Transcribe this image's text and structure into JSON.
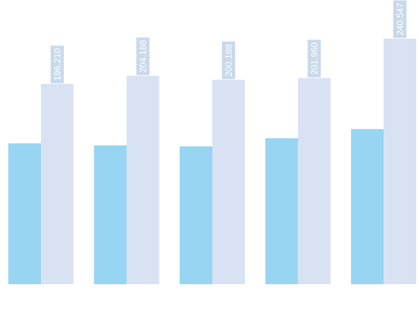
{
  "chart_data": {
    "type": "bar",
    "categories": [
      "",
      "",
      "",
      "",
      ""
    ],
    "series": [
      {
        "color": "#97d5f2",
        "values": [
          138,
          136,
          135,
          143,
          152
        ],
        "labels_shown": false
      },
      {
        "color": "#d9e2f3",
        "values": [
          196.21,
          204.188,
          200.188,
          201.96,
          240.547
        ],
        "labels": [
          "196.210",
          "204.188",
          "200.188",
          "201.960",
          "240.547"
        ],
        "labels_shown": true
      }
    ],
    "ylim": [
      0,
      275
    ],
    "grid": false,
    "legend": "none",
    "label_style": {
      "background": "#c9d9ea",
      "text_color": "#ffffff",
      "rotation": "vertical"
    }
  }
}
